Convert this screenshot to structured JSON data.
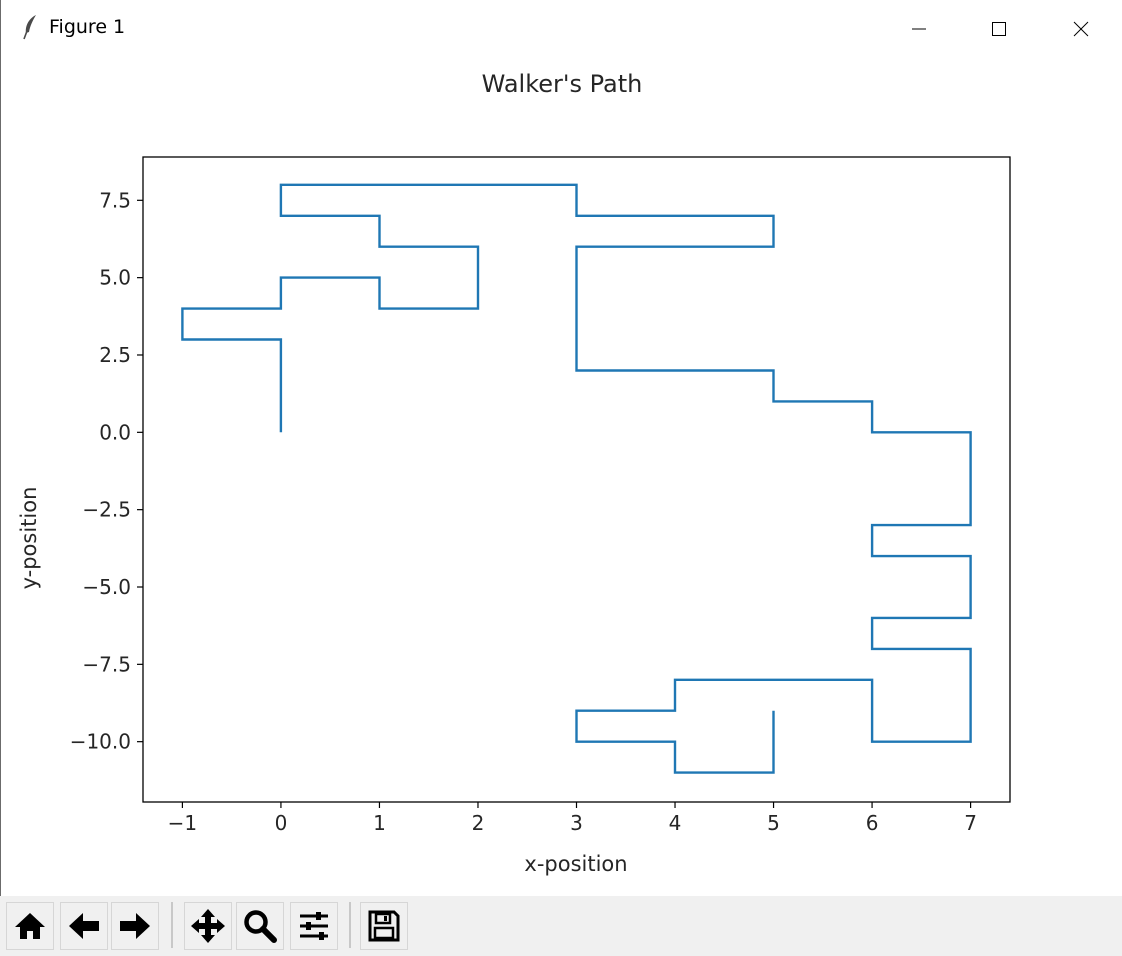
{
  "window": {
    "title": "Figure 1",
    "app_icon": "feather-icon",
    "controls": [
      "minimize-icon",
      "maximize-icon",
      "close-icon"
    ]
  },
  "toolbar": {
    "buttons": [
      {
        "name": "home-button",
        "icon": "home-icon"
      },
      {
        "name": "back-button",
        "icon": "arrow-left-icon"
      },
      {
        "name": "forward-button",
        "icon": "arrow-right-icon"
      },
      {
        "name": "pan-button",
        "icon": "move-icon"
      },
      {
        "name": "zoom-button",
        "icon": "magnifier-icon"
      },
      {
        "name": "configure-subplots-button",
        "icon": "sliders-icon"
      },
      {
        "name": "save-button",
        "icon": "floppy-disk-icon"
      }
    ]
  },
  "chart_data": {
    "type": "line",
    "title": "Walker's Path",
    "xlabel": "x-position",
    "ylabel": "y-position",
    "xlim": [
      -1.4,
      7.4
    ],
    "ylim": [
      -11.95,
      8.9
    ],
    "xticks": [
      -1,
      0,
      1,
      2,
      3,
      4,
      5,
      6,
      7
    ],
    "xtick_labels": [
      "−1",
      "0",
      "1",
      "2",
      "3",
      "4",
      "5",
      "6",
      "7"
    ],
    "yticks": [
      7.5,
      5.0,
      2.5,
      0.0,
      -2.5,
      -5.0,
      -7.5,
      -10.0
    ],
    "ytick_labels": [
      "7.5",
      "5.0",
      "2.5",
      "0.0",
      "−2.5",
      "−5.0",
      "−7.5",
      "−10.0"
    ],
    "grid": false,
    "series": [
      {
        "color": "#1f77b4",
        "x": [
          0,
          0,
          -1,
          -1,
          0,
          0,
          1,
          1,
          2,
          2,
          1,
          1,
          0,
          0,
          3,
          3,
          5,
          5,
          3,
          3,
          5,
          5,
          6,
          6,
          7,
          7,
          6,
          6,
          7,
          7,
          6,
          6,
          7,
          7,
          6,
          6,
          4,
          4,
          3,
          3,
          4,
          4,
          5,
          5
        ],
        "y": [
          0,
          3,
          3,
          4,
          4,
          5,
          5,
          4,
          4,
          6,
          6,
          7,
          7,
          8,
          8,
          7,
          7,
          6,
          6,
          2,
          2,
          1,
          1,
          0,
          0,
          -3,
          -3,
          -4,
          -4,
          -6,
          -6,
          -7,
          -7,
          -10,
          -10,
          -8,
          -8,
          -9,
          -9,
          -10,
          -10,
          -11,
          -11,
          -9
        ]
      }
    ]
  }
}
